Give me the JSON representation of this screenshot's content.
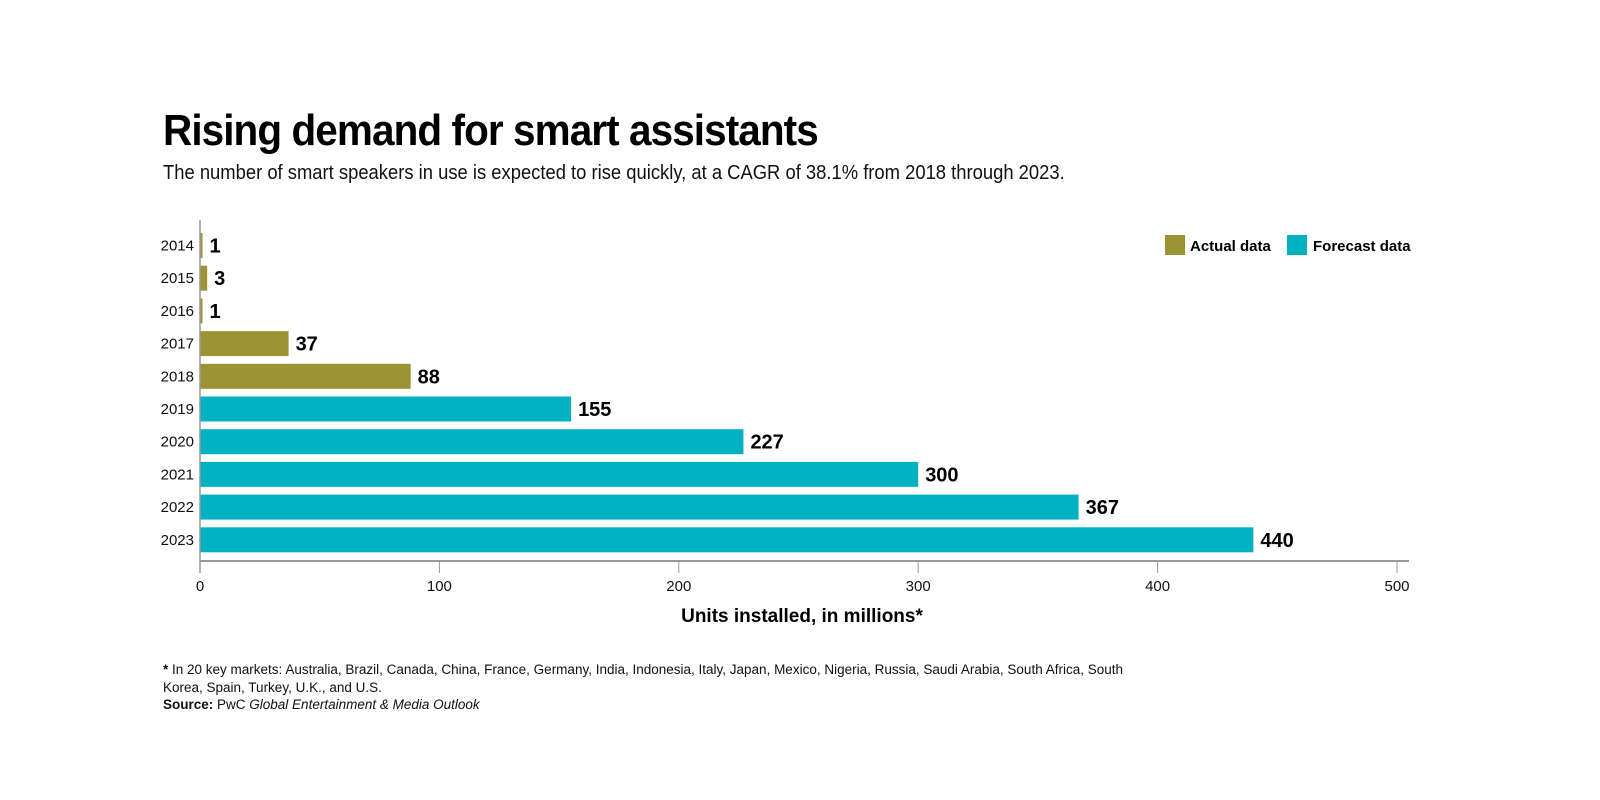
{
  "colors": {
    "actual": "#9c9434",
    "forecast": "#00b2c1",
    "axis": "#999999"
  },
  "chart_data": {
    "type": "bar",
    "orientation": "horizontal",
    "title": "Rising demand for smart assistants",
    "subtitle": "The number of smart speakers in use is expected to rise quickly, at a CAGR of 38.1% from 2018 through 2023.",
    "categories": [
      "2014",
      "2015",
      "2016",
      "2017",
      "2018",
      "2019",
      "2020",
      "2021",
      "2022",
      "2023"
    ],
    "values": [
      1,
      3,
      1,
      37,
      88,
      155,
      227,
      300,
      367,
      440
    ],
    "value_labels": [
      "1",
      "3",
      "1",
      "37",
      "88",
      "155",
      "227",
      "300",
      "367",
      "440"
    ],
    "series_type": [
      "actual",
      "actual",
      "actual",
      "actual",
      "actual",
      "forecast",
      "forecast",
      "forecast",
      "forecast",
      "forecast"
    ],
    "xlabel": "Units installed, in millions*",
    "ylabel": "",
    "xlim": [
      0,
      500
    ],
    "xticks": [
      0,
      100,
      200,
      300,
      400,
      500
    ],
    "xtick_labels": [
      "0",
      "100",
      "200",
      "300",
      "400",
      "500"
    ],
    "grid": false,
    "legend": {
      "placement": "top-right",
      "entries": [
        {
          "key": "actual",
          "label": "Actual data"
        },
        {
          "key": "forecast",
          "label": "Forecast data"
        }
      ]
    }
  },
  "footnote": {
    "asterisk": "*",
    "markets_text": " In 20 key markets: Australia, Brazil, Canada, China, France, Germany, India, Indonesia, Italy, Japan, Mexico, Nigeria, Russia, Saudi Arabia, South Africa, South Korea, Spain, Turkey, U.K., and U.S.",
    "source_label": "Source:",
    "source_publisher": " PwC ",
    "source_title": "Global Entertainment & Media Outlook"
  }
}
